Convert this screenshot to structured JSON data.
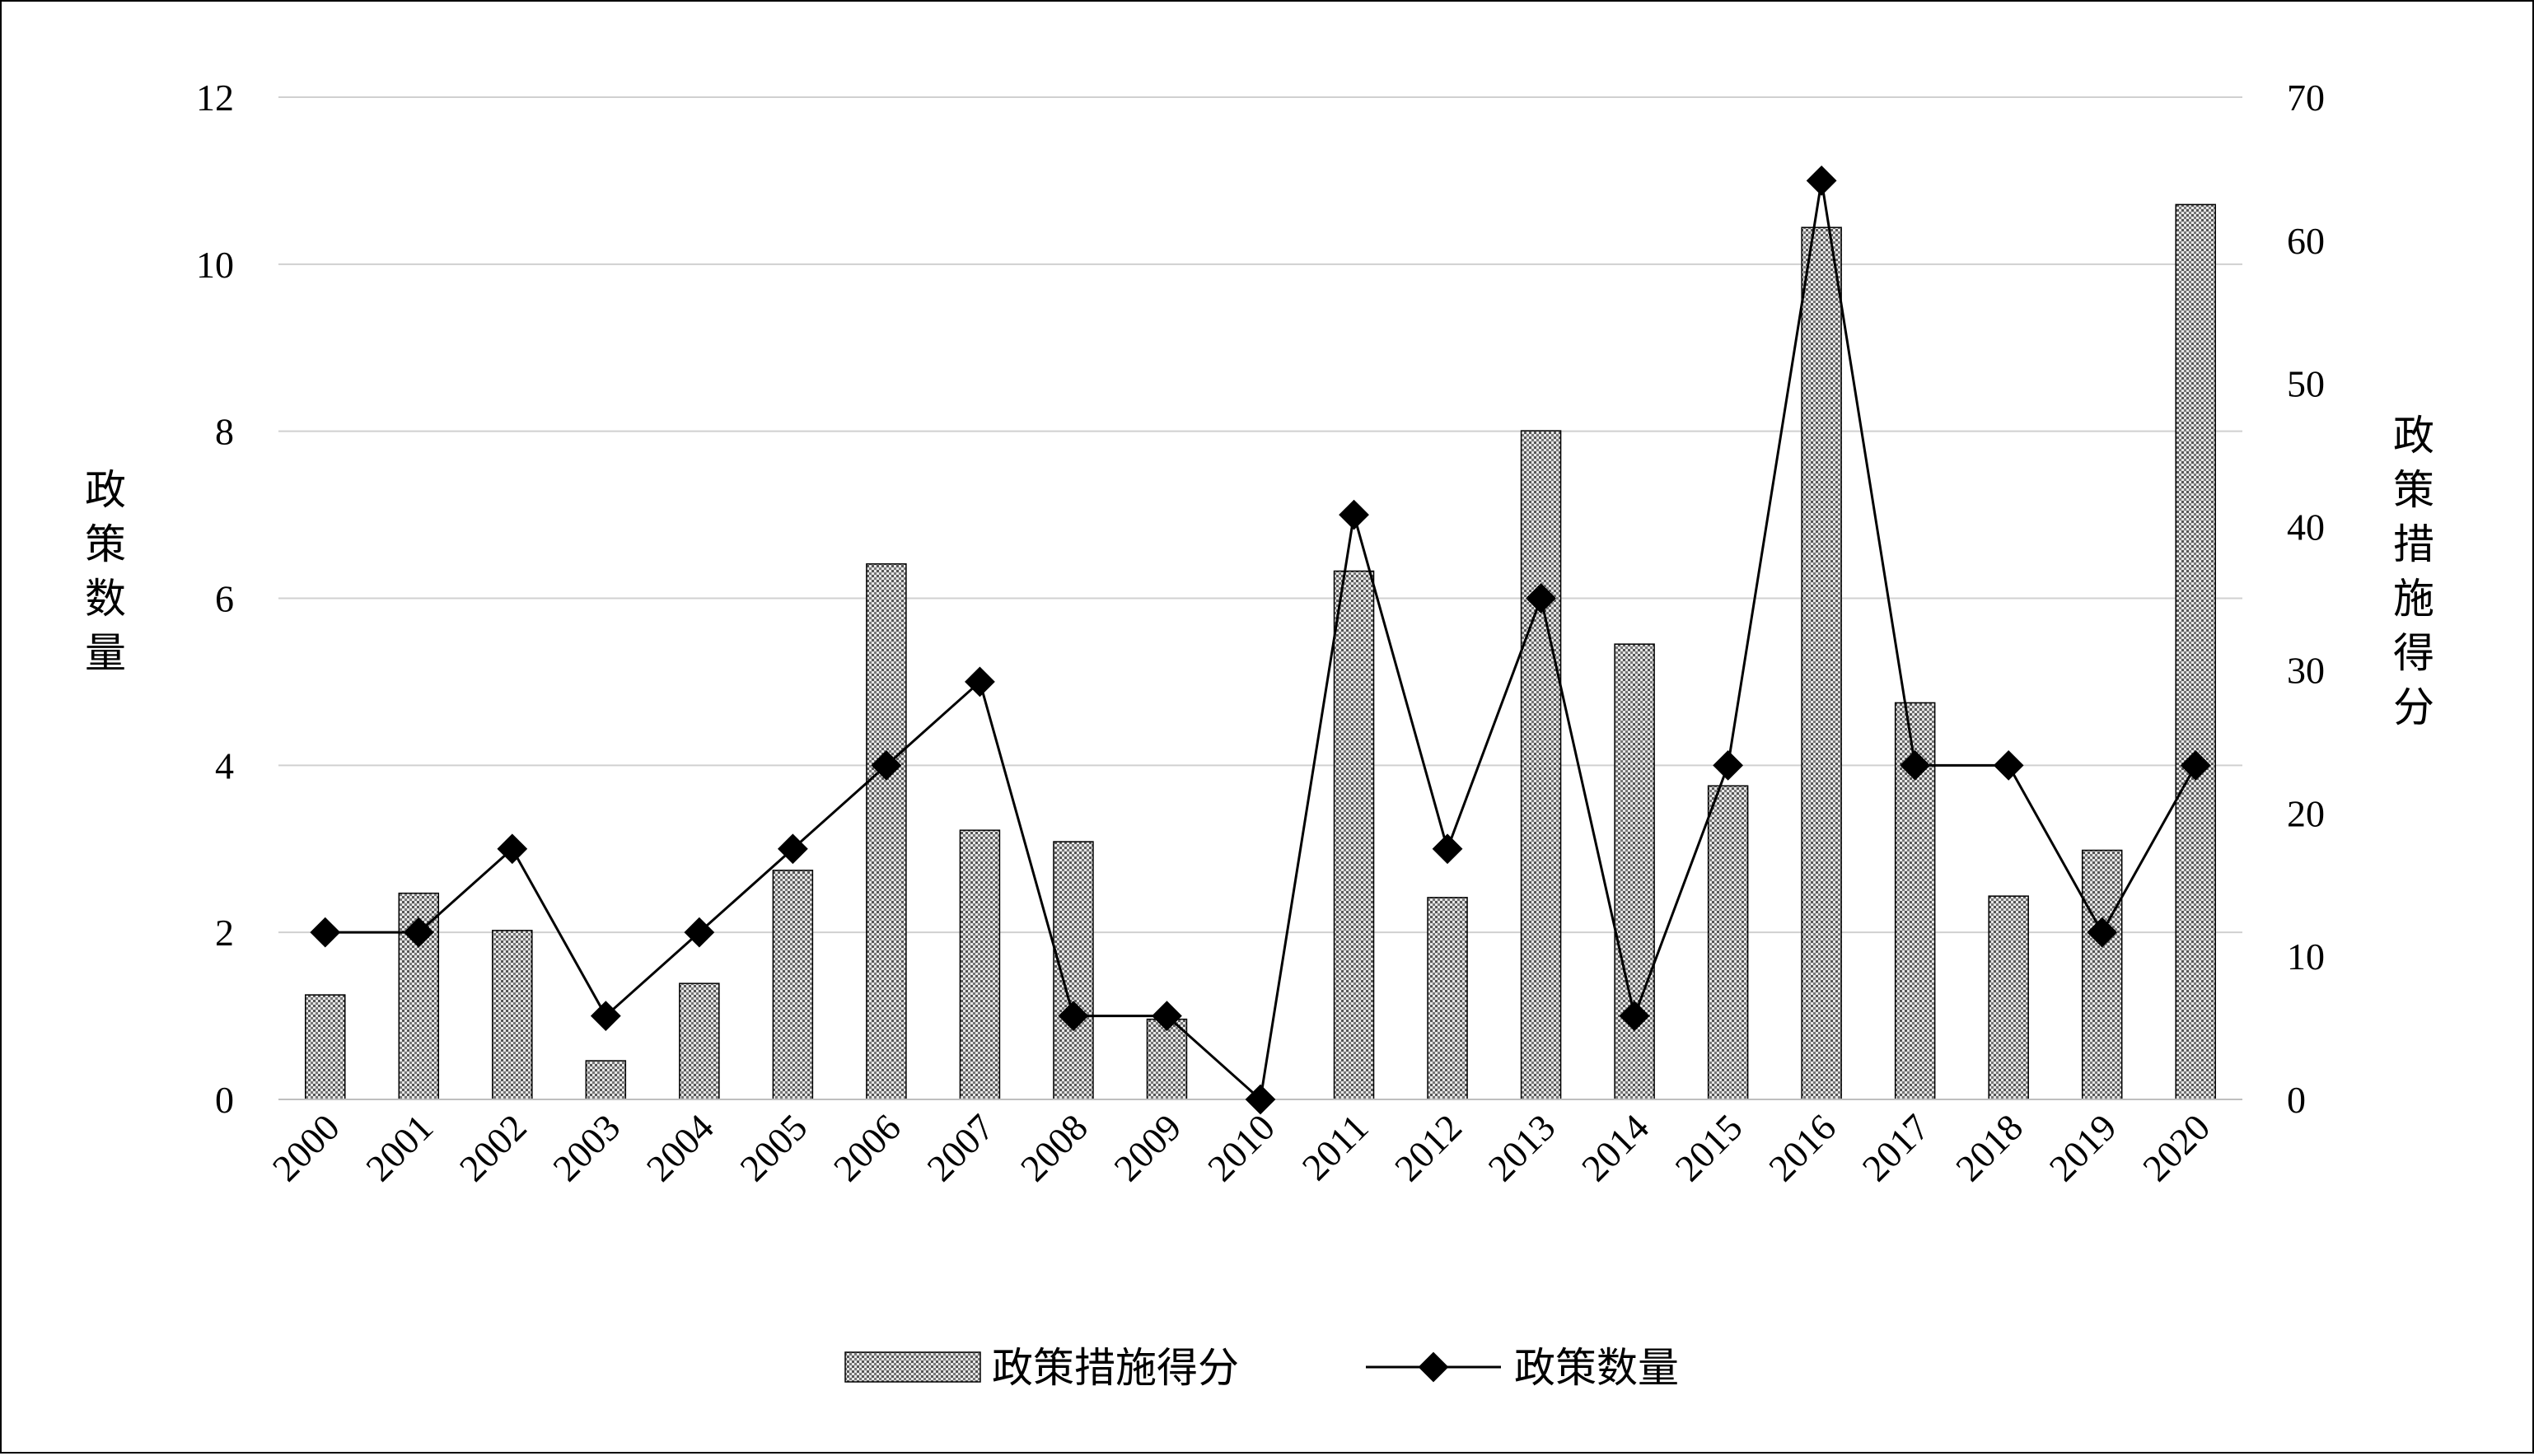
{
  "chart_data": {
    "type": "bar",
    "categories": [
      "2000",
      "2001",
      "2002",
      "2003",
      "2004",
      "2005",
      "2006",
      "2007",
      "2008",
      "2009",
      "2010",
      "2011",
      "2012",
      "2013",
      "2014",
      "2015",
      "2016",
      "2017",
      "2018",
      "2019",
      "2020"
    ],
    "y_left_label": "政策数量",
    "y_right_label": "政策措施得分",
    "y_left_range": [
      0,
      12
    ],
    "y_left_ticks": [
      "0",
      "2",
      "4",
      "6",
      "8",
      "10",
      "12"
    ],
    "y_right_range": [
      0,
      70
    ],
    "y_right_ticks": [
      "0",
      "10",
      "20",
      "30",
      "40",
      "50",
      "60",
      "70"
    ],
    "grid": true,
    "legend_position": "bottom",
    "series": [
      {
        "name": "政策措施得分",
        "type": "bar",
        "axis": "right",
        "pattern": "dotted-hatch",
        "values": [
          7.3,
          14.4,
          11.8,
          2.7,
          8.1,
          16.0,
          37.4,
          18.8,
          18.0,
          5.6,
          0,
          36.9,
          14.1,
          46.7,
          31.8,
          21.9,
          60.9,
          27.7,
          14.2,
          17.4,
          62.5
        ]
      },
      {
        "name": "政策数量",
        "type": "line",
        "axis": "left",
        "marker": "diamond",
        "values": [
          2,
          2,
          3,
          1,
          2,
          3,
          4,
          5,
          1,
          1,
          0,
          7,
          3,
          6,
          1,
          4,
          11,
          4,
          4,
          2,
          4
        ]
      }
    ]
  }
}
